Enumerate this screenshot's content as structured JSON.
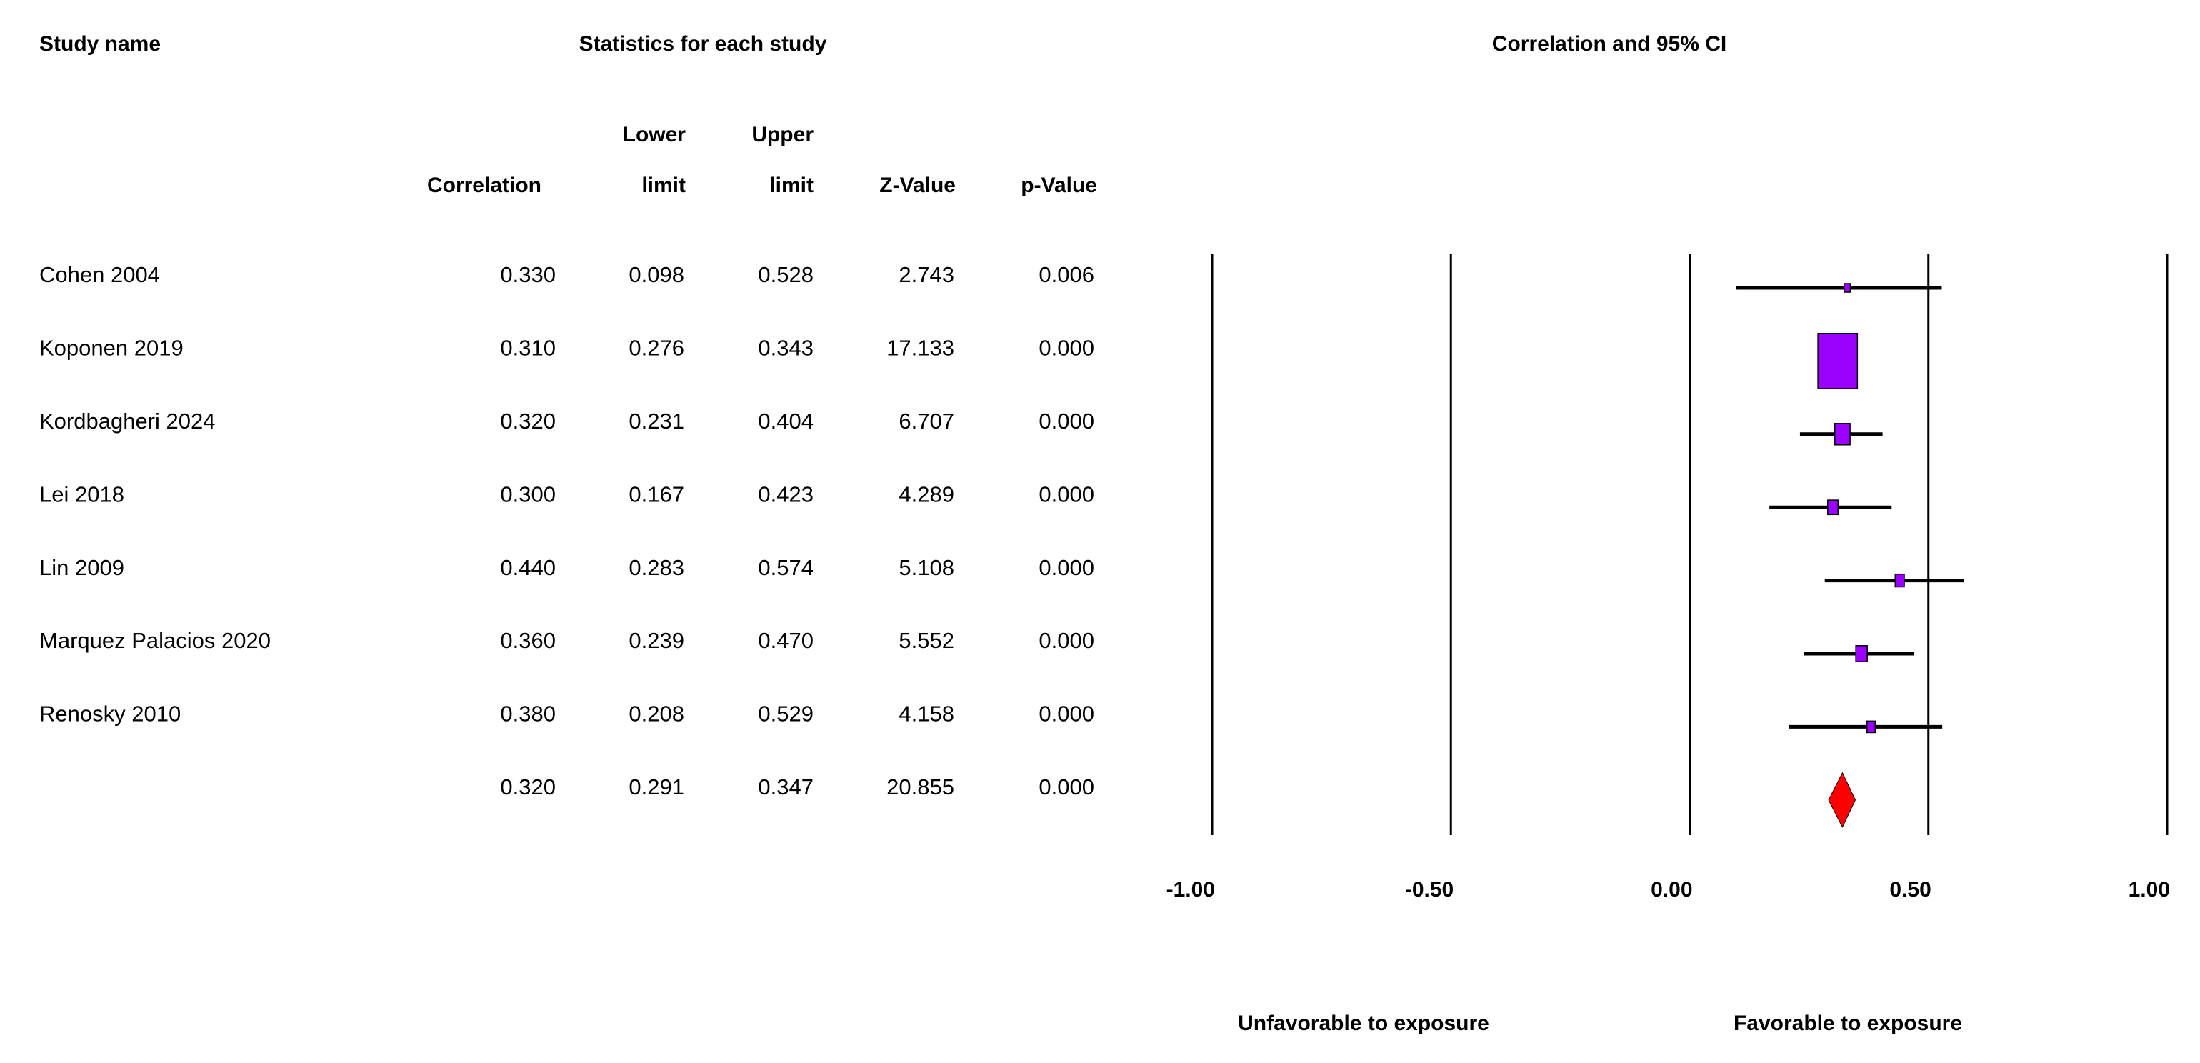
{
  "chart_data": {
    "type": "forest",
    "column_titles": {
      "study": "Study name",
      "statistics": "Statistics for each study",
      "plot": "Correlation and 95% CI"
    },
    "categories": [
      "Cohen 2004",
      "Koponen 2019",
      "Kordbagheri 2024",
      "Lei 2018",
      "Lin 2009",
      "Marquez Palacios 2020",
      "Renosky 2010",
      null
    ],
    "columns": [
      {
        "header": [
          "Correlation"
        ],
        "values": [
          0.33,
          0.31,
          0.32,
          0.3,
          0.44,
          0.36,
          0.38,
          0.32
        ],
        "value_labels": [
          "0.330",
          "0.310",
          "0.320",
          "0.300",
          "0.440",
          "0.360",
          "0.380",
          "0.320"
        ]
      },
      {
        "header": [
          "Lower",
          "limit"
        ],
        "values": [
          0.098,
          0.276,
          0.231,
          0.167,
          0.283,
          0.239,
          0.208,
          0.291
        ],
        "value_labels": [
          "0.098",
          "0.276",
          "0.231",
          "0.167",
          "0.283",
          "0.239",
          "0.208",
          "0.291"
        ]
      },
      {
        "header": [
          "Upper",
          "limit"
        ],
        "values": [
          0.528,
          0.343,
          0.404,
          0.423,
          0.574,
          0.47,
          0.529,
          0.347
        ],
        "value_labels": [
          "0.528",
          "0.343",
          "0.404",
          "0.423",
          "0.574",
          "0.470",
          "0.529",
          "0.347"
        ]
      },
      {
        "header": [
          "Z-Value"
        ],
        "values": [
          2.743,
          17.133,
          6.707,
          4.289,
          5.108,
          5.552,
          4.158,
          20.855
        ],
        "value_labels": [
          "2.743",
          "17.133",
          "6.707",
          "4.289",
          "5.108",
          "5.552",
          "4.158",
          "20.855"
        ]
      },
      {
        "header": [
          "p-Value"
        ],
        "values": [
          0.006,
          0,
          0,
          0,
          0,
          0,
          0,
          0
        ],
        "value_labels": [
          "0.006",
          "0.000",
          "0.000",
          "0.000",
          "0.000",
          "0.000",
          "0.000",
          "0.000"
        ]
      }
    ],
    "xlim": [
      -1,
      1
    ],
    "xticks": [
      {
        "value": -1,
        "label": "-1.00"
      },
      {
        "value": -0.5,
        "label": "-0.50"
      },
      {
        "value": 0,
        "label": "0.00"
      },
      {
        "value": 0.5,
        "label": "0.50"
      },
      {
        "value": 1,
        "label": "1.00"
      }
    ],
    "grid": true,
    "box_color": "#9b00ff",
    "summary_color": "#ff0000",
    "left_label": "Unfavorable to exposure",
    "right_label": "Favorable to exposure"
  }
}
